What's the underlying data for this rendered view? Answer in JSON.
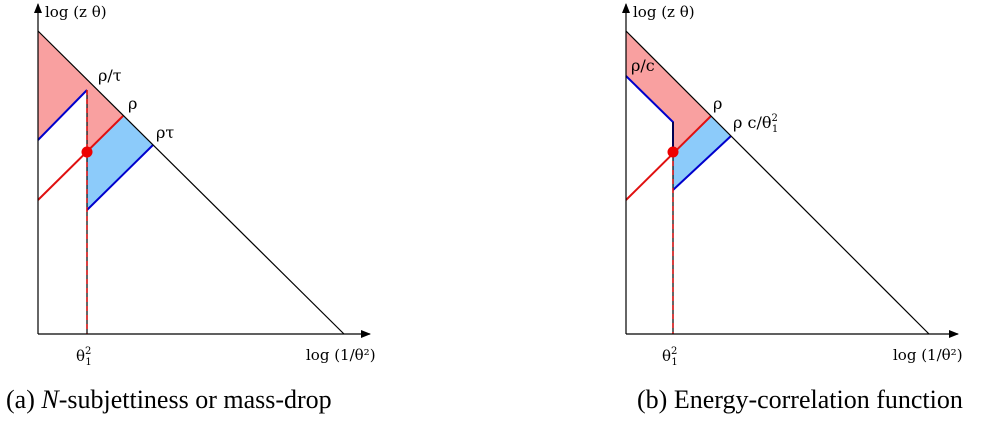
{
  "panels": [
    {
      "id": "a",
      "y_axis_label": "log (z θ)",
      "x_axis_label": "log (1/θ²)",
      "x_tick_label_base": "θ",
      "x_tick_label_sup": "2",
      "x_tick_label_sub": "1",
      "region_labels": [
        "ρ/τ",
        "ρ",
        "ρτ"
      ],
      "caption_prefix": "(a) ",
      "caption_italic": "N",
      "caption_rest": "-subjettiness or mass-drop"
    },
    {
      "id": "b",
      "y_axis_label": "log (z θ)",
      "x_axis_label": "log (1/θ²)",
      "x_tick_label_base": "θ",
      "x_tick_label_sup": "2",
      "x_tick_label_sub": "1",
      "region_labels": [
        "ρ/c",
        "ρ",
        "ρ c/θ",
        "1",
        "2"
      ],
      "caption_prefix": "(b) ",
      "caption_italic": "",
      "caption_rest": "Energy-correlation function"
    }
  ],
  "colors": {
    "red_fill": "#f9a0a0",
    "blue_fill": "#8ccbfa",
    "red_line": "#e01010",
    "blue_line": "#0000cc",
    "axis": "#000000",
    "point": "#ee0000"
  }
}
